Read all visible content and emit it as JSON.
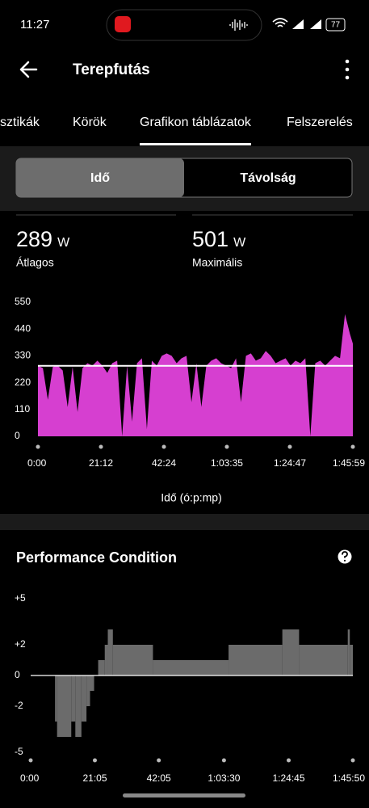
{
  "status_bar": {
    "time": "11:27",
    "battery": "77"
  },
  "header": {
    "title": "Terepfutás"
  },
  "tabs": [
    "sztikák",
    "Körök",
    "Grafikon táblázatok",
    "Felszerelés"
  ],
  "active_tab": 2,
  "toggle": [
    "Idő",
    "Távolság"
  ],
  "toggle_active": 0,
  "stats": [
    {
      "value": 289,
      "unit": "W",
      "label": "Átlagos"
    },
    {
      "value": 501,
      "unit": "W",
      "label": "Maximális"
    }
  ],
  "power_chart": {
    "type": "area",
    "color": "#d63fd0",
    "reference_color": "#ffffff",
    "x": [
      0,
      100,
      200,
      300,
      400,
      500,
      600,
      700,
      800,
      900,
      1000,
      1100,
      1200,
      1300,
      1400,
      1500,
      1600,
      1700,
      1800,
      1900,
      2000,
      2100,
      2200,
      2300,
      2400,
      2500,
      2600,
      2700,
      2800,
      2900,
      3000,
      3100,
      3200,
      3300,
      3400,
      3500,
      3600,
      3700,
      3800,
      3900,
      4000,
      4100,
      4200,
      4300,
      4400,
      4500,
      4600,
      4700,
      4800,
      4900,
      5000,
      5100,
      5200,
      5300,
      5400,
      5500,
      5600,
      5700,
      5800,
      5900,
      6000,
      6100,
      6200,
      6300,
      6359
    ],
    "values": [
      290,
      280,
      150,
      285,
      290,
      270,
      120,
      285,
      100,
      280,
      300,
      290,
      310,
      290,
      260,
      300,
      310,
      0,
      290,
      60,
      300,
      320,
      30,
      310,
      290,
      330,
      340,
      330,
      300,
      320,
      330,
      140,
      300,
      120,
      290,
      310,
      320,
      300,
      290,
      280,
      320,
      140,
      330,
      340,
      310,
      320,
      350,
      330,
      300,
      310,
      320,
      290,
      310,
      300,
      320,
      0,
      300,
      310,
      290,
      310,
      330,
      320,
      501,
      420,
      380
    ],
    "xlim": [
      0,
      6359
    ],
    "ylim": [
      0,
      550
    ],
    "xticks": [
      {
        "value": 0,
        "label": "0:00"
      },
      {
        "value": 1272,
        "label": "21:12"
      },
      {
        "value": 2544,
        "label": "42:24"
      },
      {
        "value": 3815,
        "label": "1:03:35"
      },
      {
        "value": 5087,
        "label": "1:24:47"
      },
      {
        "value": 6359,
        "label": "1:45:59"
      }
    ],
    "yticks": [
      0,
      110,
      220,
      330,
      440,
      550
    ],
    "x_label": "Idő (ó:p:mp)"
  },
  "performance_chart": {
    "type": "step",
    "title": "Performance Condition",
    "color": "#6b6b6b",
    "x": [
      480,
      520,
      800,
      880,
      1000,
      1100,
      1170,
      1250,
      1330,
      1460,
      1520,
      1620,
      2410,
      3900,
      4960,
      5290,
      6250,
      6290
    ],
    "values": [
      -3,
      -4,
      -3,
      -4,
      -3,
      -2,
      -1,
      0,
      1,
      2,
      3,
      2,
      1,
      2,
      3,
      2,
      3,
      2
    ],
    "xlim": [
      0,
      6350
    ],
    "ylim": [
      -5,
      5
    ],
    "xticks": [
      {
        "value": 0,
        "label": "0:00"
      },
      {
        "value": 1265,
        "label": "21:05"
      },
      {
        "value": 2525,
        "label": "42:05"
      },
      {
        "value": 3810,
        "label": "1:03:30"
      },
      {
        "value": 5085,
        "label": "1:24:45"
      },
      {
        "value": 6350,
        "label": "1:45:50"
      }
    ],
    "yticks": [
      {
        "value": 5,
        "label": "+5"
      },
      {
        "value": 2,
        "label": "+2"
      },
      0,
      -2,
      -5
    ]
  }
}
